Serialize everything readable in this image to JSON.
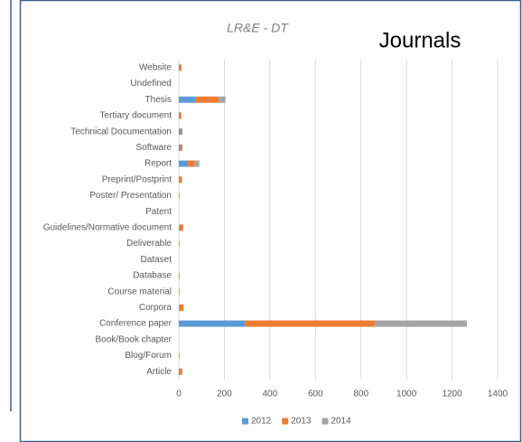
{
  "chart_data": {
    "type": "bar",
    "orientation": "horizontal",
    "stacked": true,
    "title": "LR&E - DT",
    "annotation": "Journals",
    "categories": [
      "Website",
      "Undefined",
      "Thesis",
      "Tertiary document",
      "Technical Documentation",
      "Software",
      "Report",
      "Preprint/Postprint",
      "Poster/     Presentation",
      "Patent",
      "Guidelines/Normative document",
      "Deliverable",
      "Dataset",
      "Database",
      "Course material",
      "Corpora",
      "Conference paper",
      "Book/Book chapter",
      "Blog/Forum",
      "Article"
    ],
    "series": [
      {
        "name": "2012",
        "color": "#5b9bd5",
        "values": [
          2,
          0,
          75,
          2,
          8,
          6,
          40,
          3,
          1,
          0,
          3,
          1,
          0,
          1,
          1,
          3,
          290,
          0,
          1,
          2
        ]
      },
      {
        "name": "2013",
        "color": "#ed7d31",
        "values": [
          8,
          0,
          100,
          8,
          6,
          8,
          30,
          10,
          2,
          0,
          15,
          2,
          0,
          2,
          2,
          18,
          570,
          0,
          2,
          13
        ]
      },
      {
        "name": "2014",
        "color": "#a5a5a5",
        "values": [
          2,
          0,
          30,
          1,
          2,
          2,
          20,
          2,
          0,
          0,
          2,
          0,
          0,
          0,
          0,
          1,
          405,
          0,
          0,
          1
        ]
      }
    ],
    "xlim": [
      0,
      1400
    ],
    "xticks": [
      0,
      200,
      400,
      600,
      800,
      1000,
      1200,
      1400
    ],
    "grid": true,
    "legend": "bottom"
  }
}
